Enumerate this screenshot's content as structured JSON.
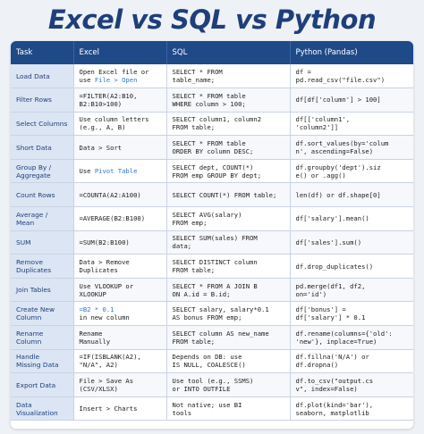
{
  "title": "Excel vs SQL vs Python",
  "columns": [
    "Task",
    "Excel",
    "SQL",
    "Python (Pandas)"
  ],
  "rows": [
    {
      "task": "Load Data",
      "excel": "Open Excel file or\nuse ",
      "excel_hl": "File > Open",
      "sql": "SELECT * FROM\ntable_name;",
      "python": "df =\npd.read_csv(\"file.csv\")"
    },
    {
      "task": "Filter Rows",
      "excel": "=FILTER(A2:B10,\nB2:B10>100)",
      "sql": "SELECT * FROM table\nWHERE column > 100;",
      "python": "df[df['column'] > 100]"
    },
    {
      "task": "Select Columns",
      "excel": "Use column letters\n(e.g., A, B)",
      "sql": "SELECT column1, column2\nFROM table;",
      "python": "df[['column1',\n'column2']]"
    },
    {
      "task": "Short Data",
      "excel": "Data > Sort",
      "sql": "SELECT * FROM table\nORDER BY column DESC;",
      "python": "df.sort_values(by='colum\nn', ascending=False)"
    },
    {
      "task": "Group By /\nAggregate",
      "excel": "Use ",
      "excel_hl": "Pivot Table",
      "sql": "SELECT dept, COUNT(*)\nFROM emp GROUP BY dept;",
      "python": "df.groupby('dept').siz\ne() or .agg()"
    },
    {
      "task": "Count Rows",
      "excel": "=COUNTA(A2:A100)",
      "sql": "SELECT COUNT(*) FROM table;",
      "python": "len(df) or df.shape[0]"
    },
    {
      "task": "Average / Mean",
      "excel": "=AVERAGE(B2:B100)",
      "sql": "SELECT AVG(salary)\nFROM emp;",
      "python": "df['salary'].mean()"
    },
    {
      "task": "SUM",
      "excel": "=SUM(B2:B100)",
      "sql": "SELECT SUM(sales) FROM\ndata;",
      "python": "df['sales'].sum()"
    },
    {
      "task": "Remove\nDuplicates",
      "excel": "Data > Remove\nDuplicates",
      "sql": "SELECT DISTINCT column\nFROM table;",
      "python": "df.drop_duplicates()"
    },
    {
      "task": "Join Tables",
      "excel": "Use VLOOKUP or\nXLOOKUP",
      "sql": "SELECT * FROM A JOIN B\nON A.id = B.id;",
      "python": "pd.merge(df1, df2,\non='id')"
    },
    {
      "task": "Create New\nColumn",
      "excel_hl_first": "=B2 * 0.1",
      "excel": "\nin new column",
      "sql": "SELECT salary, salary*0.1\nAS bonus FROM emp;",
      "python": "df['bonus'] =\ndf['salary'] * 0.1"
    },
    {
      "task": "Rename\nColumn",
      "excel": "Rename\nManually",
      "sql": "SELECT column AS new_name\nFROM table;",
      "python": "df.rename(columns={'old':\n'new'}, inplace=True)"
    },
    {
      "task": "Handle\nMissing Data",
      "excel": "=IF(ISBLANK(A2),\n\"N/A\", A2)",
      "sql": "Depends on DB: use\nIS NULL, COALESCE()",
      "python": "df.fillna('N/A') or\ndf.dropna()"
    },
    {
      "task": "Export Data",
      "excel": "File > Save As\n(CSV/XLSX)",
      "sql": "Use tool (e.g., SSMS)\nor INTO OUTFILE",
      "python": "df.to_csv(\"output.cs\nv\", index=False)"
    },
    {
      "task": "Data\nVisualization",
      "excel": "Insert > Charts",
      "sql": "Not native; use BI\ntools",
      "python": "df.plot(kind='bar'),\nseaborn, matplotlib"
    }
  ]
}
